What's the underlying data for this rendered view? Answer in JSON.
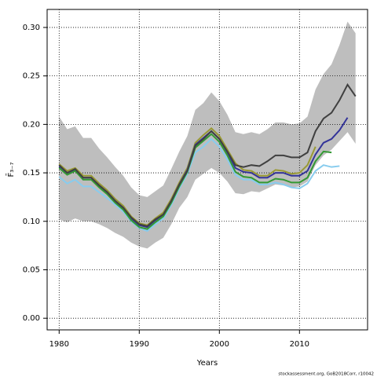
{
  "chart_data": {
    "type": "line",
    "ylabel": "F̄₃₋₇",
    "xlabel": "Years",
    "footnote": "stockassessment.org, GoB2018Corr, r10042",
    "x": [
      1980,
      1981,
      1982,
      1983,
      1984,
      1985,
      1986,
      1987,
      1988,
      1989,
      1990,
      1991,
      1992,
      1993,
      1994,
      1995,
      1996,
      1997,
      1998,
      1999,
      2000,
      2001,
      2002,
      2003,
      2004,
      2005,
      2006,
      2007,
      2008,
      2009,
      2010,
      2011,
      2012,
      2013,
      2014,
      2015,
      2016,
      2017
    ],
    "xlim": [
      1978.5,
      2018.5
    ],
    "xticks": [
      1980,
      1990,
      2000,
      2010
    ],
    "ylim": [
      -0.012,
      0.3186
    ],
    "yticks": [
      {
        "value": 0,
        "label": "0.00"
      },
      {
        "value": 0.05,
        "label": "0.05"
      },
      {
        "value": 0.1,
        "label": "0.10"
      },
      {
        "value": 0.15,
        "label": "0.15"
      },
      {
        "value": 0.2,
        "label": "0.20"
      },
      {
        "value": 0.25,
        "label": "0.25"
      },
      {
        "value": 0.3,
        "label": "0.30"
      }
    ],
    "grid": true,
    "band": {
      "color": "#bebebe",
      "upper": [
        0.208,
        0.195,
        0.198,
        0.186,
        0.186,
        0.175,
        0.166,
        0.156,
        0.147,
        0.135,
        0.127,
        0.125,
        0.131,
        0.137,
        0.154,
        0.172,
        0.188,
        0.215,
        0.222,
        0.233,
        0.224,
        0.21,
        0.192,
        0.19,
        0.192,
        0.19,
        0.195,
        0.202,
        0.202,
        0.2,
        0.201,
        0.208,
        0.236,
        0.252,
        0.262,
        0.282,
        0.306,
        0.294
      ],
      "lower": [
        0.102,
        0.099,
        0.103,
        0.1,
        0.1,
        0.097,
        0.093,
        0.088,
        0.084,
        0.078,
        0.074,
        0.072,
        0.078,
        0.083,
        0.097,
        0.114,
        0.125,
        0.143,
        0.149,
        0.155,
        0.15,
        0.141,
        0.129,
        0.128,
        0.131,
        0.13,
        0.134,
        0.138,
        0.137,
        0.135,
        0.136,
        0.141,
        0.158,
        0.168,
        0.174,
        0.183,
        0.192,
        0.18
      ]
    },
    "series": [
      {
        "color": "#88ccee",
        "values": [
          0.146,
          0.139,
          0.143,
          0.136,
          0.136,
          0.13,
          0.124,
          0.117,
          0.11,
          0.1,
          0.093,
          0.09,
          0.097,
          0.103,
          0.117,
          0.134,
          0.149,
          0.171,
          0.177,
          0.185,
          0.177,
          0.164,
          0.148,
          0.143,
          0.143,
          0.138,
          0.138,
          0.14,
          0.138,
          0.135,
          0.134,
          0.139,
          0.152,
          0.158,
          0.156,
          0.157,
          null,
          null
        ]
      },
      {
        "color": "#999933",
        "values": [
          0.159,
          0.152,
          0.155,
          0.147,
          0.147,
          0.139,
          0.132,
          0.123,
          0.116,
          0.105,
          0.098,
          0.096,
          0.103,
          0.109,
          0.123,
          0.14,
          0.155,
          0.181,
          0.189,
          0.196,
          0.188,
          0.174,
          0.16,
          0.153,
          0.152,
          0.147,
          0.147,
          0.153,
          0.152,
          0.149,
          0.15,
          0.158,
          0.177,
          null,
          null,
          null,
          null,
          null
        ]
      },
      {
        "color": "#333399",
        "values": [
          0.157,
          0.15,
          0.153,
          0.145,
          0.145,
          0.137,
          0.13,
          0.121,
          0.114,
          0.103,
          0.096,
          0.094,
          0.101,
          0.107,
          0.121,
          0.138,
          0.153,
          0.179,
          0.186,
          0.193,
          0.185,
          0.171,
          0.155,
          0.151,
          0.15,
          0.145,
          0.145,
          0.15,
          0.15,
          0.147,
          0.147,
          0.152,
          0.169,
          0.181,
          0.185,
          0.194,
          0.207,
          null
        ]
      },
      {
        "color": "#339933",
        "values": [
          0.155,
          0.148,
          0.152,
          0.143,
          0.143,
          0.135,
          0.128,
          0.119,
          0.112,
          0.101,
          0.094,
          0.092,
          0.099,
          0.105,
          0.119,
          0.136,
          0.151,
          0.176,
          0.183,
          0.19,
          0.182,
          0.168,
          0.151,
          0.146,
          0.145,
          0.14,
          0.14,
          0.144,
          0.143,
          0.14,
          0.14,
          0.145,
          0.162,
          0.172,
          0.171,
          null,
          null,
          null
        ]
      },
      {
        "color": "#404040",
        "values": [
          0.158,
          0.15,
          0.154,
          0.145,
          0.145,
          0.137,
          0.13,
          0.121,
          0.114,
          0.104,
          0.097,
          0.095,
          0.102,
          0.107,
          0.121,
          0.138,
          0.152,
          0.178,
          0.185,
          0.193,
          0.185,
          0.172,
          0.158,
          0.156,
          0.158,
          0.157,
          0.162,
          0.168,
          0.168,
          0.166,
          0.166,
          0.171,
          0.193,
          0.206,
          0.212,
          0.225,
          0.241,
          0.229
        ]
      }
    ]
  }
}
